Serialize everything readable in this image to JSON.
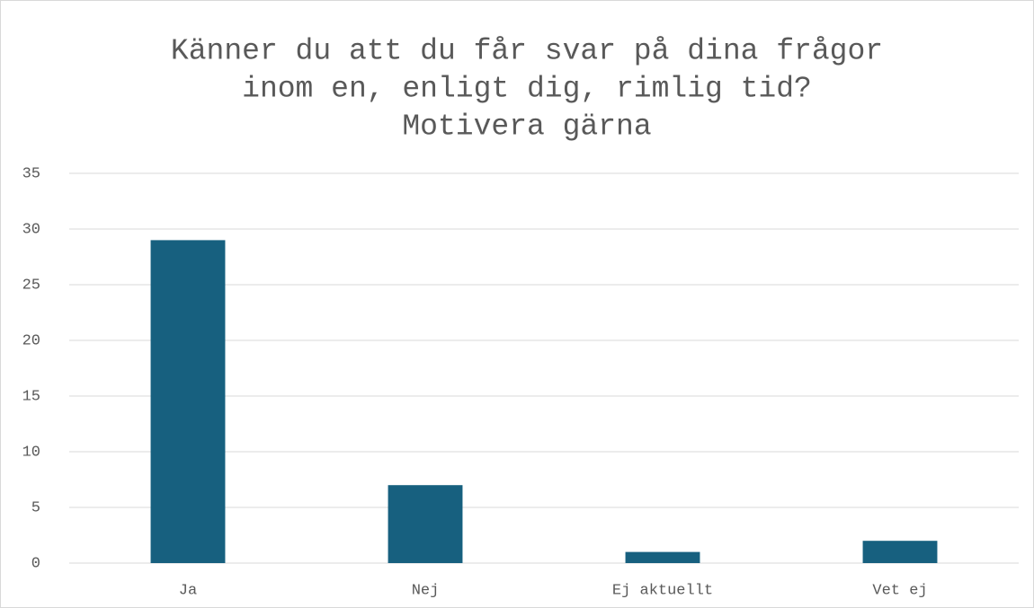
{
  "chart_data": {
    "type": "bar",
    "title": [
      "Känner du att du får svar på dina frågor",
      "inom en, enligt dig, rimlig tid?",
      "Motivera gärna"
    ],
    "categories": [
      "Ja",
      "Nej",
      "Ej aktuellt",
      "Vet ej"
    ],
    "values": [
      29,
      7,
      1,
      2
    ],
    "color": "#17607f",
    "ylim": [
      0,
      35
    ],
    "yticks": [
      0,
      5,
      10,
      15,
      20,
      25,
      30,
      35
    ],
    "grid": true
  }
}
